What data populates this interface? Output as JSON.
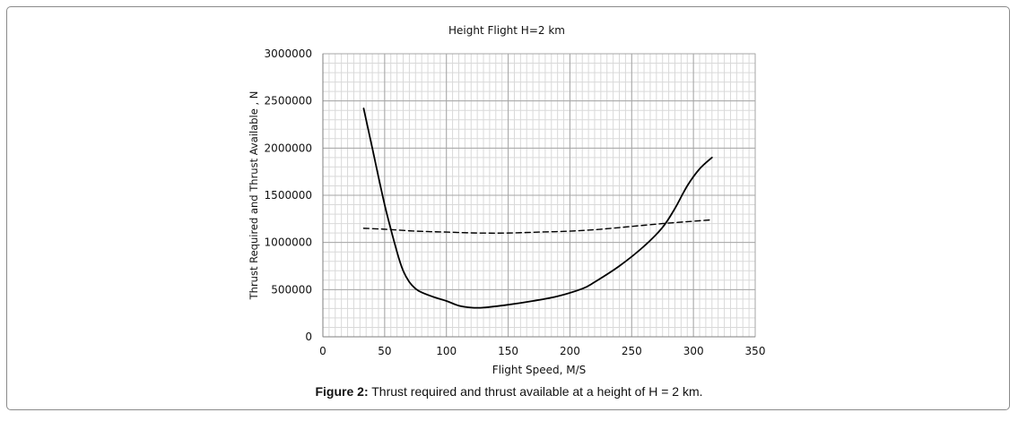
{
  "chart_data": {
    "type": "line",
    "title": "Height Flight H=2 km",
    "xlabel": "Flight Speed, M/S",
    "ylabel": "Thrust Required and Thrust Available , N",
    "xlim": [
      0,
      350
    ],
    "ylim": [
      0,
      3000000
    ],
    "xticks": [
      0,
      50,
      100,
      150,
      200,
      250,
      300,
      350
    ],
    "yticks": [
      0,
      500000,
      1000000,
      1500000,
      2000000,
      2500000,
      3000000
    ],
    "xtick_labels": [
      "0",
      "50",
      "100",
      "150",
      "200",
      "250",
      "300",
      "350"
    ],
    "ytick_labels": [
      "0",
      "500000",
      "1000000",
      "1500000",
      "2000000",
      "2500000",
      "3000000"
    ],
    "grid": true,
    "legend": "none",
    "series": [
      {
        "style": "solid",
        "color": "#000000",
        "x": [
          33,
          40,
          50,
          60,
          65,
          70,
          75,
          80,
          90,
          100,
          110,
          120,
          130,
          150,
          170,
          190,
          210,
          220,
          240,
          260,
          275,
          285,
          295,
          305,
          315
        ],
        "y": [
          2420000,
          2000000,
          1400000,
          900000,
          700000,
          580000,
          510000,
          470000,
          420000,
          380000,
          330000,
          310000,
          310000,
          340000,
          380000,
          430000,
          510000,
          580000,
          750000,
          960000,
          1160000,
          1360000,
          1600000,
          1780000,
          1900000
        ]
      },
      {
        "style": "dashed",
        "color": "#000000",
        "x": [
          33,
          50,
          75,
          100,
          125,
          150,
          175,
          200,
          225,
          250,
          275,
          300,
          315
        ],
        "y": [
          1150000,
          1140000,
          1120000,
          1110000,
          1100000,
          1100000,
          1110000,
          1120000,
          1140000,
          1170000,
          1200000,
          1225000,
          1240000
        ]
      }
    ]
  },
  "caption": {
    "label": "Figure 2:",
    "text": " Thrust required and thrust available at a height of H = 2 km."
  }
}
